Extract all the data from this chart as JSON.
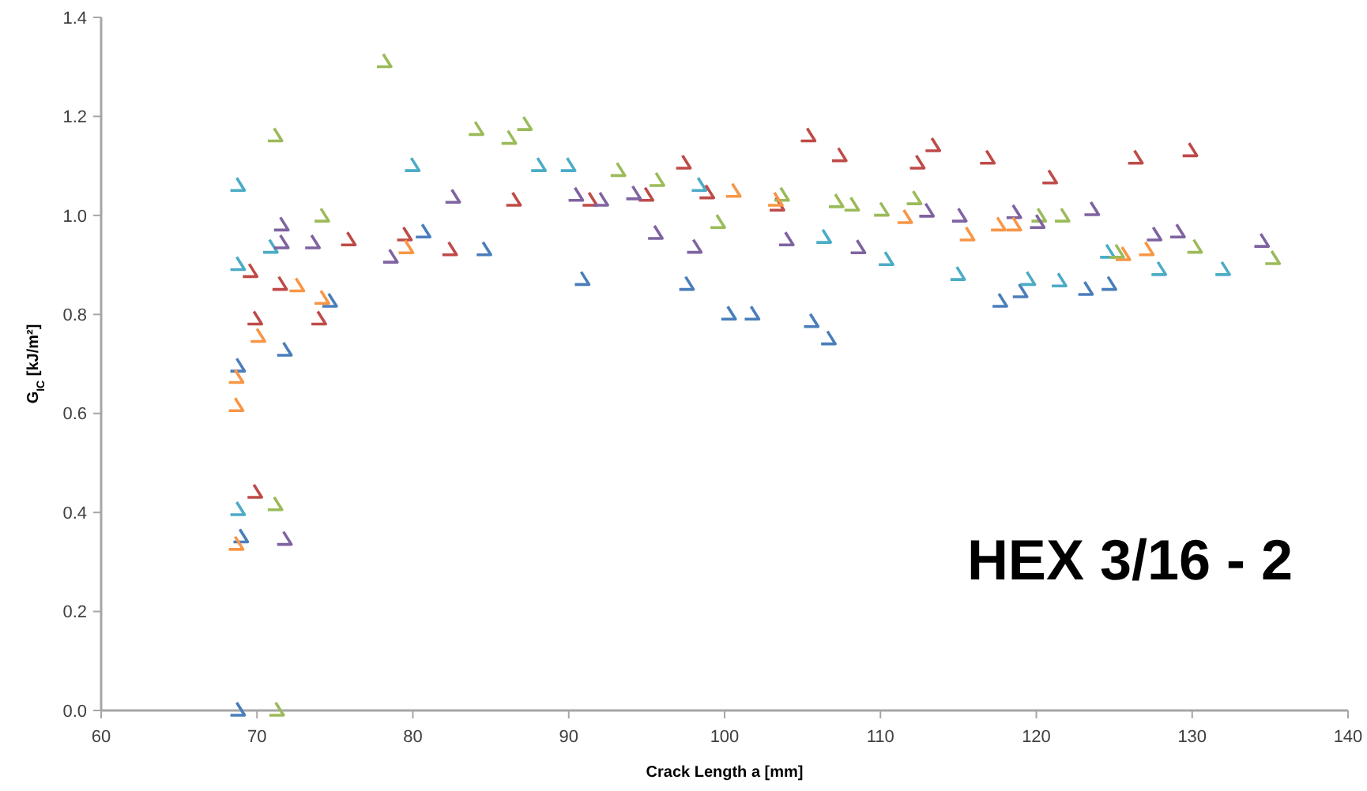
{
  "chart_data": {
    "type": "scatter",
    "xlabel": "Crack Length a [mm]",
    "ylabel": "G$_{IC}$ [kJ/m²]",
    "annotations": [
      "HEX 3/16 - 2"
    ],
    "xlim": [
      60,
      140
    ],
    "xticks": [
      60,
      70,
      80,
      90,
      100,
      110,
      120,
      130,
      140
    ],
    "ylim": [
      0,
      1.4
    ],
    "yticks": [
      {
        "value": 0,
        "label": "0.0"
      },
      {
        "value": 0.2,
        "label": "0.2"
      },
      {
        "value": 0.4,
        "label": "0.4"
      },
      {
        "value": 0.6,
        "label": "0.6"
      },
      {
        "value": 0.8,
        "label": "0.8"
      },
      {
        "value": 1,
        "label": "1.0"
      },
      {
        "value": 1.2,
        "label": "1.2"
      },
      {
        "value": 1.4,
        "label": "1.4"
      }
    ],
    "grid": false,
    "marker": "cross",
    "series": [
      {
        "color": "#4a7ebb",
        "x": [
          68.9,
          69.1,
          68.9,
          71.9,
          74.8,
          80.8,
          84.7,
          91.0,
          97.7,
          100.4,
          101.9,
          105.7,
          106.8,
          117.8,
          119.1,
          123.3,
          124.8
        ],
        "values": [
          0,
          0.35,
          0.695,
          0.727,
          0.826,
          0.966,
          0.93,
          0.87,
          0.86,
          0.8,
          0.8,
          0.785,
          0.75,
          0.826,
          0.845,
          0.85,
          0.86
        ]
      },
      {
        "color": "#4bacc6",
        "x": [
          68.9,
          68.9,
          68.9,
          71.0,
          80.1,
          88.2,
          90.1,
          98.5,
          106.5,
          110.5,
          115.1,
          119.6,
          121.6,
          124.7,
          128.0,
          132.1
        ],
        "values": [
          1.06,
          0.9,
          0.405,
          0.935,
          1.1,
          1.1,
          1.1,
          1.06,
          0.955,
          0.91,
          0.88,
          0.87,
          0.867,
          0.925,
          0.89,
          0.89
        ]
      },
      {
        "color": "#be4b48",
        "x": [
          70.0,
          69.7,
          71.6,
          70.0,
          74.1,
          76.0,
          79.6,
          82.5,
          86.6,
          91.5,
          95.1,
          97.5,
          99.0,
          103.5,
          105.5,
          107.5,
          112.5,
          113.5,
          117.0,
          121.0,
          126.5,
          130.0
        ],
        "values": [
          0.44,
          0.886,
          0.86,
          0.79,
          0.79,
          0.95,
          0.96,
          0.93,
          1.03,
          1.03,
          1.04,
          1.105,
          1.045,
          1.02,
          1.16,
          1.12,
          1.105,
          1.14,
          1.115,
          1.075,
          1.115,
          1.13
        ]
      },
      {
        "color": "#9bbb59",
        "x": [
          71.4,
          71.3,
          71.3,
          78.3,
          74.3,
          84.2,
          86.3,
          87.3,
          93.3,
          95.8,
          99.7,
          103.8,
          107.3,
          108.3,
          110.2,
          112.3,
          120.3,
          121.8,
          125.3,
          130.3,
          135.3
        ],
        "values": [
          0,
          0.415,
          1.16,
          1.31,
          0.998,
          1.173,
          1.155,
          1.183,
          1.09,
          1.07,
          0.985,
          1.04,
          1.027,
          1.02,
          1.01,
          1.033,
          0.998,
          0.998,
          0.925,
          0.935,
          0.912
        ]
      },
      {
        "color": "#7f63a1",
        "x": [
          71.9,
          71.7,
          71.7,
          73.7,
          78.7,
          82.7,
          90.6,
          92.2,
          94.3,
          95.7,
          98.2,
          104.1,
          108.7,
          113.1,
          115.2,
          118.7,
          120.2,
          123.7,
          127.7,
          129.2,
          134.6
        ],
        "values": [
          0.345,
          0.98,
          0.944,
          0.944,
          0.915,
          1.036,
          1.04,
          1.03,
          1.043,
          0.963,
          0.935,
          0.95,
          0.934,
          1.008,
          0.998,
          1.005,
          0.985,
          1.011,
          0.96,
          0.966,
          0.947
        ]
      },
      {
        "color": "#f79646",
        "x": [
          68.8,
          68.8,
          68.8,
          70.2,
          72.7,
          74.3,
          79.7,
          100.7,
          103.4,
          111.7,
          115.7,
          117.7,
          118.7,
          125.7,
          127.2
        ],
        "values": [
          0.335,
          0.615,
          0.672,
          0.755,
          0.857,
          0.832,
          0.934,
          1.048,
          1.03,
          0.995,
          0.96,
          0.98,
          0.98,
          0.92,
          0.93
        ]
      }
    ]
  }
}
